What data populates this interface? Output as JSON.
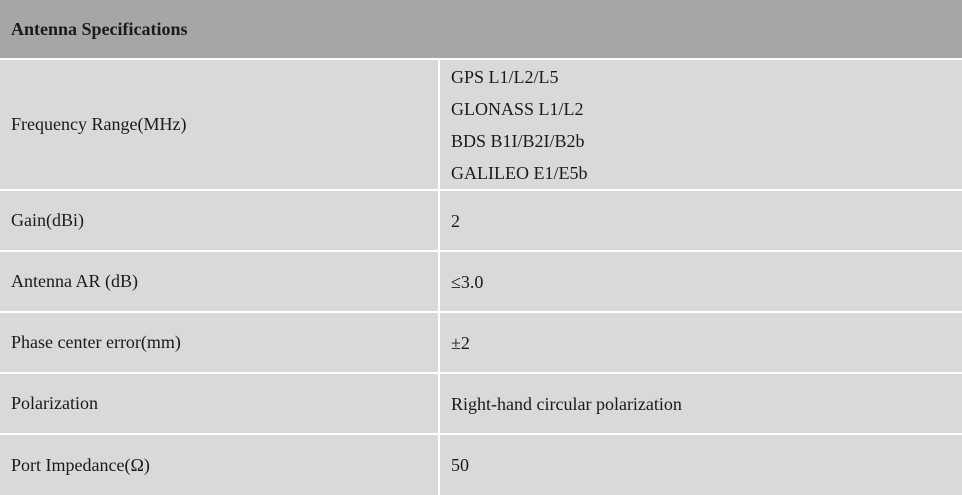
{
  "table": {
    "title": "Antenna Specifications",
    "rows": [
      {
        "label": "Frequency Range(MHz)",
        "values": [
          "GPS L1/L2/L5",
          "GLONASS L1/L2",
          "BDS B1I/B2I/B2b",
          "GALILEO E1/E5b"
        ]
      },
      {
        "label": "Gain(dBi)",
        "values": [
          "2"
        ]
      },
      {
        "label": "Antenna AR (dB)",
        "values": [
          "≤3.0"
        ]
      },
      {
        "label": "Phase center error(mm)",
        "values": [
          "±2"
        ]
      },
      {
        "label": "Polarization",
        "values": [
          "Right-hand circular polarization"
        ]
      },
      {
        "label": "Port Impedance(Ω)",
        "values": [
          "50"
        ]
      }
    ]
  }
}
